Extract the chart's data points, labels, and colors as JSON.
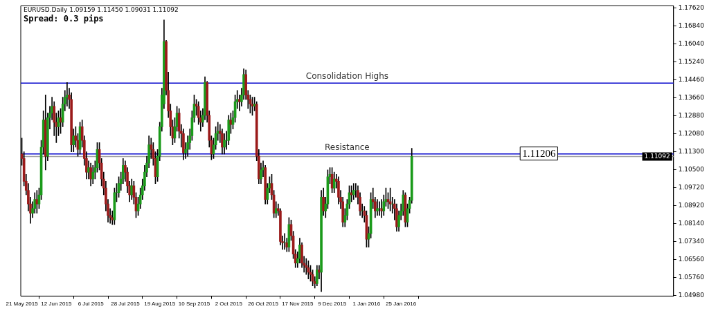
{
  "chart_data": {
    "type": "candlestick",
    "title": "EURUSD.Daily 1.09159 1.11450 1.09031 1.11092",
    "subtitle": "Spread: 0.3 pips",
    "categories": [
      "21 May 2015",
      null,
      null,
      null,
      null,
      null,
      null,
      null,
      null,
      null,
      null,
      null,
      null,
      null,
      null,
      null,
      "12 Jun 2015",
      null,
      null,
      null,
      null,
      null,
      null,
      null,
      null,
      null,
      null,
      null,
      null,
      null,
      null,
      null,
      "6 Jul 2015",
      null,
      null,
      null,
      null,
      null,
      null,
      null,
      null,
      null,
      null,
      null,
      null,
      null,
      null,
      null,
      "28 Jul 2015",
      null,
      null,
      null,
      null,
      null,
      null,
      null,
      null,
      null,
      null,
      null,
      null,
      null,
      null,
      null,
      "19 Aug 2015",
      null,
      null,
      null,
      null,
      null,
      null,
      null,
      null,
      null,
      null,
      null,
      null,
      null,
      null,
      null,
      "10 Sep 2015",
      null,
      null,
      null,
      null,
      null,
      null,
      null,
      null,
      null,
      null,
      null,
      null,
      null,
      null,
      null,
      "2 Oct 2015",
      null,
      null,
      null,
      null,
      null,
      null,
      null,
      null,
      null,
      null,
      null,
      null,
      null,
      null,
      null,
      "26 Oct 2015",
      null,
      null,
      null,
      null,
      null,
      null,
      null,
      null,
      null,
      null,
      null,
      null,
      null,
      null,
      null,
      "17 Nov 2015",
      null,
      null,
      null,
      null,
      null,
      null,
      null,
      null,
      null,
      null,
      null,
      null,
      null,
      null,
      null,
      "9 Dec 2015",
      null,
      null,
      null,
      null,
      null,
      null,
      null,
      null,
      null,
      null,
      null,
      null,
      null,
      null,
      null,
      "1 Jan 2016",
      null,
      null,
      null,
      null,
      null,
      null,
      null,
      null,
      null,
      null,
      null,
      null,
      null,
      null,
      null,
      "25 Jan 2016",
      null,
      null,
      null,
      null,
      null,
      null,
      null,
      null,
      null,
      null,
      null,
      null,
      null,
      null,
      null,
      null,
      null,
      null,
      null,
      null,
      null,
      null,
      null,
      null,
      null,
      null,
      null,
      null,
      null,
      null,
      null,
      null,
      null,
      null,
      null,
      null,
      null,
      null,
      null,
      null,
      null,
      null,
      null,
      null,
      null,
      null,
      null,
      null,
      null,
      null,
      null,
      null,
      null,
      null,
      null,
      null,
      null,
      null,
      null,
      null,
      null,
      null,
      null,
      null,
      null,
      null,
      null,
      null,
      null,
      null,
      null,
      null,
      null,
      null,
      null,
      null,
      null,
      null,
      null,
      null,
      null,
      null,
      null,
      null,
      null,
      null,
      null,
      null,
      null,
      null,
      null,
      null,
      null,
      null,
      null,
      null,
      null,
      null,
      null,
      null,
      null,
      null,
      null,
      null,
      null,
      null,
      null,
      null,
      null,
      null,
      null,
      null,
      null,
      null,
      null,
      null,
      null,
      null,
      null,
      null,
      null,
      null,
      null,
      null,
      null,
      null
    ],
    "ohlc": [
      [
        1.112,
        1.119,
        1.107,
        1.11
      ],
      [
        1.11,
        1.113,
        1.098,
        1.1
      ],
      [
        1.1,
        1.103,
        1.094,
        1.096
      ],
      [
        1.096,
        1.099,
        1.087,
        1.09
      ],
      [
        1.09,
        1.093,
        1.0815,
        1.086
      ],
      [
        1.086,
        1.091,
        1.084,
        1.088
      ],
      [
        1.088,
        1.095,
        1.086,
        1.092
      ],
      [
        1.092,
        1.096,
        1.086,
        1.09
      ],
      [
        1.09,
        1.097,
        1.088,
        1.094
      ],
      [
        1.094,
        1.118,
        1.092,
        1.115
      ],
      [
        1.115,
        1.131,
        1.112,
        1.127
      ],
      [
        1.127,
        1.138,
        1.105,
        1.111
      ],
      [
        1.111,
        1.13,
        1.109,
        1.128
      ],
      [
        1.128,
        1.133,
        1.123,
        1.13
      ],
      [
        1.13,
        1.137,
        1.127,
        1.133
      ],
      [
        1.133,
        1.135,
        1.12,
        1.126
      ],
      [
        1.126,
        1.13,
        1.117,
        1.124
      ],
      [
        1.124,
        1.131,
        1.12,
        1.128
      ],
      [
        1.128,
        1.132,
        1.121,
        1.126
      ],
      [
        1.126,
        1.137,
        1.124,
        1.134
      ],
      [
        1.134,
        1.14,
        1.131,
        1.137
      ],
      [
        1.137,
        1.1435,
        1.133,
        1.138
      ],
      [
        1.138,
        1.141,
        1.132,
        1.136
      ],
      [
        1.136,
        1.139,
        1.113,
        1.116
      ],
      [
        1.116,
        1.123,
        1.113,
        1.12
      ],
      [
        1.12,
        1.124,
        1.115,
        1.118
      ],
      [
        1.118,
        1.121,
        1.111,
        1.114
      ],
      [
        1.114,
        1.126,
        1.112,
        1.124
      ],
      [
        1.124,
        1.127,
        1.115,
        1.118
      ],
      [
        1.118,
        1.12,
        1.107,
        1.11
      ],
      [
        1.11,
        1.113,
        1.101,
        1.104
      ],
      [
        1.104,
        1.109,
        1.101,
        1.106
      ],
      [
        1.106,
        1.108,
        1.098,
        1.101
      ],
      [
        1.101,
        1.107,
        1.099,
        1.104
      ],
      [
        1.104,
        1.109,
        1.101,
        1.106
      ],
      [
        1.106,
        1.117,
        1.104,
        1.114
      ],
      [
        1.114,
        1.117,
        1.105,
        1.108
      ],
      [
        1.108,
        1.11,
        1.098,
        1.101
      ],
      [
        1.101,
        1.104,
        1.094,
        1.097
      ],
      [
        1.097,
        1.1,
        1.087,
        1.09
      ],
      [
        1.09,
        1.092,
        1.082,
        1.085
      ],
      [
        1.085,
        1.088,
        1.0815,
        1.084
      ],
      [
        1.084,
        1.087,
        1.081,
        1.083
      ],
      [
        1.083,
        1.097,
        1.081,
        1.095
      ],
      [
        1.095,
        1.099,
        1.091,
        1.095
      ],
      [
        1.095,
        1.102,
        1.093,
        1.099
      ],
      [
        1.099,
        1.104,
        1.096,
        1.101
      ],
      [
        1.101,
        1.11,
        1.099,
        1.107
      ],
      [
        1.107,
        1.109,
        1.1,
        1.104
      ],
      [
        1.104,
        1.106,
        1.095,
        1.098
      ],
      [
        1.098,
        1.1,
        1.091,
        1.094
      ],
      [
        1.094,
        1.101,
        1.092,
        1.098
      ],
      [
        1.098,
        1.1,
        1.09,
        1.093
      ],
      [
        1.093,
        1.095,
        1.084,
        1.087
      ],
      [
        1.087,
        1.093,
        1.085,
        1.09
      ],
      [
        1.09,
        1.097,
        1.088,
        1.094
      ],
      [
        1.094,
        1.101,
        1.092,
        1.098
      ],
      [
        1.098,
        1.107,
        1.096,
        1.104
      ],
      [
        1.104,
        1.111,
        1.102,
        1.108
      ],
      [
        1.108,
        1.12,
        1.106,
        1.116
      ],
      [
        1.116,
        1.119,
        1.11,
        1.114
      ],
      [
        1.114,
        1.117,
        1.107,
        1.11
      ],
      [
        1.11,
        1.113,
        1.099,
        1.102
      ],
      [
        1.102,
        1.114,
        1.1,
        1.111
      ],
      [
        1.111,
        1.126,
        1.109,
        1.124
      ],
      [
        1.124,
        1.141,
        1.122,
        1.138
      ],
      [
        1.134,
        1.171,
        1.132,
        1.1615
      ],
      [
        1.1615,
        1.162,
        1.138,
        1.14
      ],
      [
        1.14,
        1.148,
        1.128,
        1.131
      ],
      [
        1.131,
        1.134,
        1.12,
        1.124
      ],
      [
        1.124,
        1.127,
        1.116,
        1.119
      ],
      [
        1.119,
        1.128,
        1.117,
        1.124
      ],
      [
        1.124,
        1.133,
        1.122,
        1.13
      ],
      [
        1.13,
        1.132,
        1.119,
        1.122
      ],
      [
        1.122,
        1.125,
        1.115,
        1.121
      ],
      [
        1.121,
        1.123,
        1.1095,
        1.1125
      ],
      [
        1.1125,
        1.117,
        1.11,
        1.114
      ],
      [
        1.114,
        1.12,
        1.111,
        1.117
      ],
      [
        1.117,
        1.123,
        1.114,
        1.12
      ],
      [
        1.12,
        1.131,
        1.118,
        1.128
      ],
      [
        1.128,
        1.138,
        1.126,
        1.134
      ],
      [
        1.134,
        1.136,
        1.129,
        1.133
      ],
      [
        1.133,
        1.135,
        1.125,
        1.128
      ],
      [
        1.128,
        1.131,
        1.122,
        1.126
      ],
      [
        1.126,
        1.132,
        1.124,
        1.129
      ],
      [
        1.129,
        1.146,
        1.127,
        1.1435
      ],
      [
        1.1435,
        1.144,
        1.126,
        1.129
      ],
      [
        1.129,
        1.131,
        1.115,
        1.118
      ],
      [
        1.118,
        1.12,
        1.1095,
        1.112
      ],
      [
        1.112,
        1.119,
        1.11,
        1.116
      ],
      [
        1.116,
        1.124,
        1.114,
        1.121
      ],
      [
        1.121,
        1.126,
        1.118,
        1.122
      ],
      [
        1.122,
        1.125,
        1.117,
        1.121
      ],
      [
        1.121,
        1.123,
        1.112,
        1.115
      ],
      [
        1.115,
        1.121,
        1.112,
        1.118
      ],
      [
        1.118,
        1.122,
        1.114,
        1.118
      ],
      [
        1.118,
        1.129,
        1.116,
        1.127
      ],
      [
        1.127,
        1.13,
        1.121,
        1.125
      ],
      [
        1.125,
        1.131,
        1.123,
        1.128
      ],
      [
        1.128,
        1.138,
        1.126,
        1.135
      ],
      [
        1.135,
        1.14,
        1.132,
        1.136
      ],
      [
        1.136,
        1.138,
        1.131,
        1.135
      ],
      [
        1.135,
        1.141,
        1.133,
        1.138
      ],
      [
        1.138,
        1.1495,
        1.136,
        1.147
      ],
      [
        1.147,
        1.149,
        1.136,
        1.138
      ],
      [
        1.138,
        1.14,
        1.132,
        1.136
      ],
      [
        1.136,
        1.138,
        1.13,
        1.134
      ],
      [
        1.134,
        1.137,
        1.129,
        1.133
      ],
      [
        1.133,
        1.137,
        1.131,
        1.134
      ],
      [
        1.134,
        1.135,
        1.109,
        1.111
      ],
      [
        1.111,
        1.114,
        1.099,
        1.101
      ],
      [
        1.101,
        1.108,
        1.099,
        1.105
      ],
      [
        1.105,
        1.109,
        1.102,
        1.106
      ],
      [
        1.106,
        1.107,
        1.09,
        1.092
      ],
      [
        1.092,
        1.099,
        1.09,
        1.097
      ],
      [
        1.097,
        1.102,
        1.095,
        1.099
      ],
      [
        1.099,
        1.103,
        1.092,
        1.094
      ],
      [
        1.094,
        1.096,
        1.084,
        1.086
      ],
      [
        1.086,
        1.091,
        1.084,
        1.088
      ],
      [
        1.088,
        1.09,
        1.085,
        1.087
      ],
      [
        1.087,
        1.088,
        1.072,
        1.0735
      ],
      [
        1.0735,
        1.076,
        1.07,
        1.073
      ],
      [
        1.073,
        1.077,
        1.07,
        1.073
      ],
      [
        1.073,
        1.075,
        1.069,
        1.071
      ],
      [
        1.071,
        1.084,
        1.069,
        1.081
      ],
      [
        1.081,
        1.083,
        1.074,
        1.076
      ],
      [
        1.076,
        1.078,
        1.066,
        1.068
      ],
      [
        1.068,
        1.07,
        1.062,
        1.064
      ],
      [
        1.064,
        1.069,
        1.062,
        1.066
      ],
      [
        1.066,
        1.075,
        1.064,
        1.072
      ],
      [
        1.072,
        1.073,
        1.062,
        1.064
      ],
      [
        1.064,
        1.067,
        1.06,
        1.063
      ],
      [
        1.063,
        1.066,
        1.059,
        1.062
      ],
      [
        1.062,
        1.065,
        1.057,
        1.06
      ],
      [
        1.06,
        1.063,
        1.056,
        1.059
      ],
      [
        1.059,
        1.061,
        1.054,
        1.056
      ],
      [
        1.056,
        1.058,
        1.053,
        1.055
      ],
      [
        1.055,
        1.063,
        1.054,
        1.061
      ],
      [
        1.061,
        1.063,
        1.057,
        1.06
      ],
      [
        1.06,
        1.096,
        1.0515,
        1.093
      ],
      [
        1.093,
        1.097,
        1.085,
        1.087
      ],
      [
        1.087,
        1.093,
        1.084,
        1.09
      ],
      [
        1.09,
        1.105,
        1.088,
        1.102
      ],
      [
        1.102,
        1.106,
        1.099,
        1.103
      ],
      [
        1.103,
        1.106,
        1.095,
        1.097
      ],
      [
        1.097,
        1.104,
        1.095,
        1.101
      ],
      [
        1.101,
        1.103,
        1.097,
        1.1
      ],
      [
        1.1,
        1.102,
        1.09,
        1.093
      ],
      [
        1.093,
        1.096,
        1.088,
        1.091
      ],
      [
        1.091,
        1.093,
        1.08,
        1.082
      ],
      [
        1.082,
        1.088,
        1.08,
        1.085
      ],
      [
        1.085,
        1.092,
        1.083,
        1.09
      ],
      [
        1.09,
        1.098,
        1.088,
        1.095
      ],
      [
        1.095,
        1.098,
        1.091,
        1.094
      ],
      [
        1.094,
        1.099,
        1.092,
        1.096
      ],
      [
        1.096,
        1.099,
        1.093,
        1.096
      ],
      [
        1.096,
        1.098,
        1.09,
        1.093
      ],
      [
        1.093,
        1.095,
        1.085,
        1.087
      ],
      [
        1.087,
        1.09,
        1.084,
        1.087
      ],
      [
        1.087,
        1.089,
        1.082,
        1.085
      ],
      [
        1.085,
        1.087,
        1.071,
        1.0745
      ],
      [
        1.0745,
        1.08,
        1.071,
        1.077
      ],
      [
        1.077,
        1.095,
        1.075,
        1.092
      ],
      [
        1.092,
        1.097,
        1.088,
        1.091
      ],
      [
        1.091,
        1.093,
        1.084,
        1.087
      ],
      [
        1.087,
        1.092,
        1.085,
        1.088
      ],
      [
        1.088,
        1.091,
        1.085,
        1.088
      ],
      [
        1.088,
        1.092,
        1.084,
        1.087
      ],
      [
        1.087,
        1.094,
        1.085,
        1.091
      ],
      [
        1.091,
        1.097,
        1.089,
        1.092
      ],
      [
        1.092,
        1.095,
        1.088,
        1.091
      ],
      [
        1.091,
        1.097,
        1.087,
        1.09
      ],
      [
        1.09,
        1.093,
        1.086,
        1.09
      ],
      [
        1.09,
        1.092,
        1.083,
        1.088
      ],
      [
        1.088,
        1.09,
        1.078,
        1.08
      ],
      [
        1.08,
        1.087,
        1.078,
        1.085
      ],
      [
        1.085,
        1.09,
        1.083,
        1.087
      ],
      [
        1.087,
        1.096,
        1.085,
        1.094
      ],
      [
        1.094,
        1.095,
        1.08,
        1.082
      ],
      [
        1.082,
        1.09,
        1.08,
        1.088
      ],
      [
        1.088,
        1.093,
        1.086,
        1.0916
      ],
      [
        1.09159,
        1.1145,
        1.09031,
        1.11092
      ],
      null,
      null,
      null,
      null,
      null,
      null,
      null,
      null,
      null,
      null,
      null,
      null,
      null,
      null,
      null,
      null,
      null,
      null,
      null,
      null,
      null,
      null,
      null,
      null,
      null,
      null,
      null,
      null,
      null,
      null,
      null,
      null,
      null,
      null,
      null,
      null,
      null,
      null,
      null,
      null,
      null,
      null,
      null,
      null,
      null,
      null,
      null,
      null,
      null,
      null,
      null,
      null,
      null,
      null,
      null,
      null,
      null,
      null,
      null,
      null,
      null,
      null,
      null,
      null,
      null,
      null,
      null,
      null,
      null,
      null,
      null,
      null,
      null,
      null,
      null,
      null,
      null,
      null,
      null,
      null,
      null,
      null,
      null,
      null,
      null,
      null,
      null,
      null,
      null,
      null,
      null,
      null,
      null,
      null,
      null,
      null,
      null,
      null,
      null,
      null,
      null,
      null,
      null,
      null,
      null,
      null,
      null,
      null,
      null,
      null,
      null,
      null,
      null,
      null,
      null,
      null,
      null,
      null,
      null,
      null,
      null
    ],
    "ylim": [
      1.0495,
      1.1772
    ],
    "yticks": [
      {
        "value": 1.1762,
        "label": "1.17620"
      },
      {
        "value": 1.1684,
        "label": "1.16840"
      },
      {
        "value": 1.1604,
        "label": "1.16040"
      },
      {
        "value": 1.1524,
        "label": "1.15240"
      },
      {
        "value": 1.1446,
        "label": "1.14460"
      },
      {
        "value": 1.1366,
        "label": "1.13660"
      },
      {
        "value": 1.1288,
        "label": "1.12880"
      },
      {
        "value": 1.1208,
        "label": "1.12080"
      },
      {
        "value": 1.113,
        "label": "1.11300"
      },
      {
        "value": 1.105,
        "label": "1.10500"
      },
      {
        "value": 1.0972,
        "label": "1.09720"
      },
      {
        "value": 1.0892,
        "label": "1.08920"
      },
      {
        "value": 1.0814,
        "label": "1.08140"
      },
      {
        "value": 1.0734,
        "label": "1.07340"
      },
      {
        "value": 1.0656,
        "label": "1.06560"
      },
      {
        "value": 1.0576,
        "label": "1.05760"
      },
      {
        "value": 1.0498,
        "label": "1.04980"
      }
    ],
    "ref_lines": [
      {
        "axis": "y",
        "value": 1.1432,
        "label": "Consolidation Highs",
        "color": "#0000cc"
      },
      {
        "axis": "y",
        "value": 1.11206,
        "label": "Resistance",
        "color": "#0000cc"
      },
      {
        "axis": "y",
        "value": 1.11092,
        "color": "#a0a0a0"
      }
    ],
    "annotations": [
      {
        "text": "1.11206",
        "y": 1.11206
      },
      {
        "text": "1.11092",
        "y": 1.11092
      }
    ]
  }
}
